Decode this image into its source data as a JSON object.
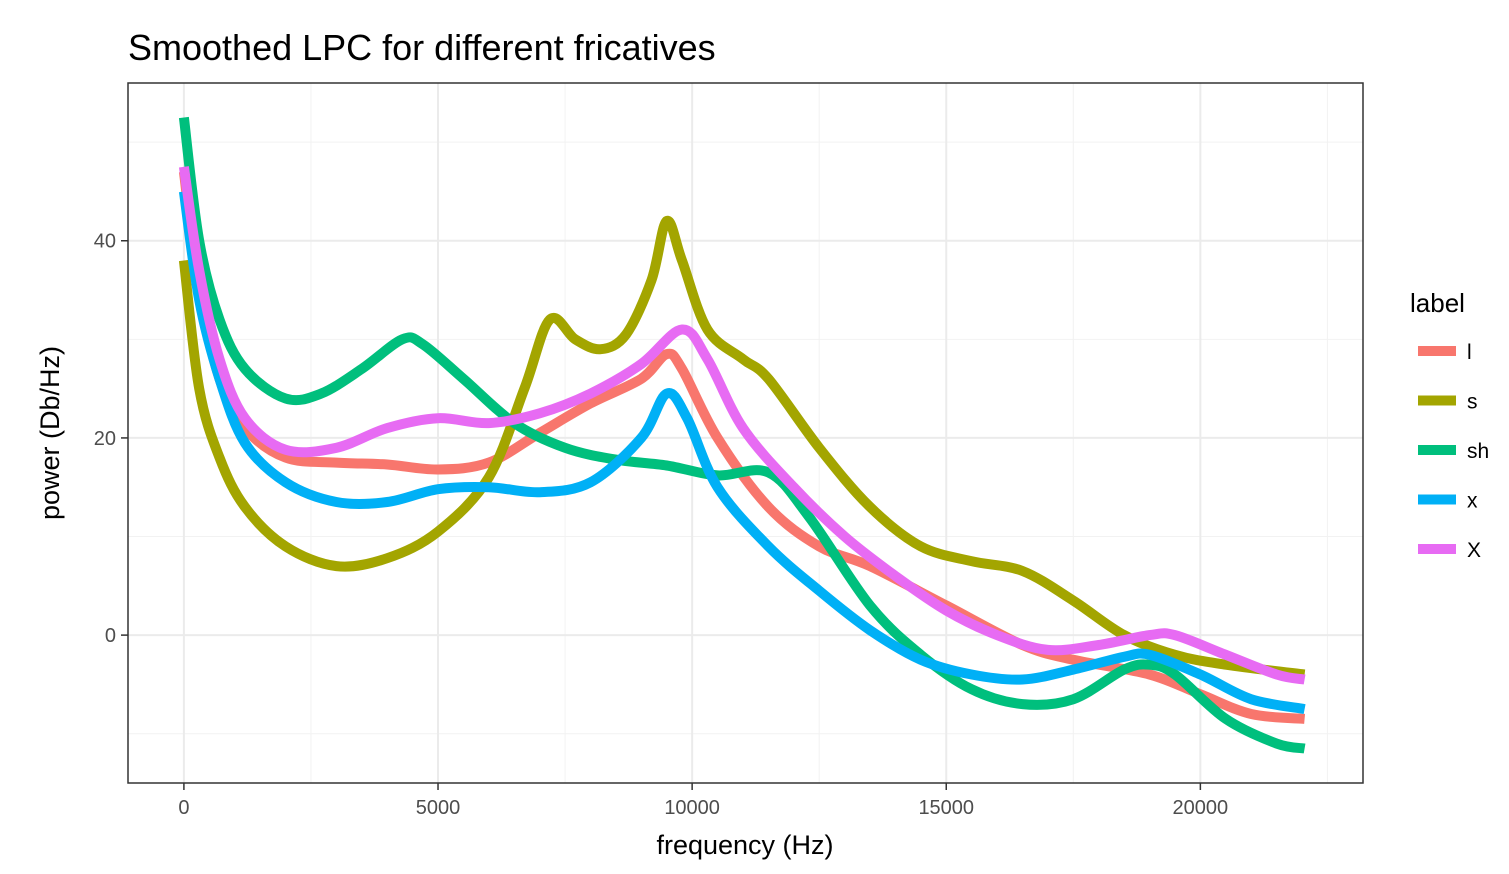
{
  "chart_data": {
    "type": "line",
    "title": "Smoothed LPC for different fricatives",
    "xlabel": "frequency (Hz)",
    "ylabel": "power (Db/Hz)",
    "xlim": [
      -1100,
      23200
    ],
    "ylim": [
      -15,
      56
    ],
    "x_ticks": [
      0,
      5000,
      10000,
      15000,
      20000
    ],
    "y_ticks": [
      0,
      20,
      40
    ],
    "grid": true,
    "legend": {
      "title": "label",
      "position": "right"
    },
    "series": [
      {
        "name": "l",
        "color": "#F8766D",
        "points": [
          [
            0,
            47
          ],
          [
            300,
            35
          ],
          [
            700,
            26
          ],
          [
            1200,
            21
          ],
          [
            2000,
            18
          ],
          [
            3000,
            17.5
          ],
          [
            4000,
            17.3
          ],
          [
            5000,
            16.8
          ],
          [
            6000,
            17.5
          ],
          [
            7000,
            20.5
          ],
          [
            8000,
            23.5
          ],
          [
            9000,
            26
          ],
          [
            9500,
            28.5
          ],
          [
            9800,
            27
          ],
          [
            10500,
            20
          ],
          [
            11500,
            13
          ],
          [
            12500,
            9
          ],
          [
            13500,
            7
          ],
          [
            15000,
            3
          ],
          [
            16500,
            -1
          ],
          [
            17500,
            -2.5
          ],
          [
            19000,
            -4
          ],
          [
            20000,
            -6
          ],
          [
            21000,
            -8
          ],
          [
            22050,
            -8.5
          ]
        ]
      },
      {
        "name": "s",
        "color": "#A3A500",
        "points": [
          [
            0,
            38
          ],
          [
            300,
            25
          ],
          [
            700,
            18
          ],
          [
            1200,
            13
          ],
          [
            2000,
            9
          ],
          [
            3000,
            7
          ],
          [
            4000,
            7.8
          ],
          [
            5000,
            10.5
          ],
          [
            6000,
            16
          ],
          [
            6700,
            25
          ],
          [
            7200,
            32
          ],
          [
            7700,
            30
          ],
          [
            8200,
            29
          ],
          [
            8700,
            30.5
          ],
          [
            9200,
            36
          ],
          [
            9500,
            42
          ],
          [
            9800,
            38
          ],
          [
            10300,
            31
          ],
          [
            11000,
            28
          ],
          [
            11500,
            26
          ],
          [
            12500,
            19
          ],
          [
            13500,
            13
          ],
          [
            14500,
            9
          ],
          [
            15500,
            7.5
          ],
          [
            16500,
            6.5
          ],
          [
            17500,
            3.5
          ],
          [
            18500,
            0
          ],
          [
            19500,
            -2
          ],
          [
            20500,
            -3
          ],
          [
            22050,
            -4
          ]
        ]
      },
      {
        "name": "sh",
        "color": "#00BF7D",
        "points": [
          [
            0,
            52.5
          ],
          [
            300,
            40
          ],
          [
            700,
            32
          ],
          [
            1200,
            27
          ],
          [
            2000,
            24
          ],
          [
            2700,
            24.5
          ],
          [
            3500,
            27
          ],
          [
            4300,
            30
          ],
          [
            4700,
            29.5
          ],
          [
            5500,
            26
          ],
          [
            6500,
            21.5
          ],
          [
            7500,
            19
          ],
          [
            8500,
            17.8
          ],
          [
            9500,
            17.2
          ],
          [
            10500,
            16.2
          ],
          [
            11500,
            16.5
          ],
          [
            12300,
            12
          ],
          [
            13500,
            3
          ],
          [
            14500,
            -2
          ],
          [
            15500,
            -5.5
          ],
          [
            16500,
            -7
          ],
          [
            17500,
            -6.5
          ],
          [
            18500,
            -3.5
          ],
          [
            19000,
            -3
          ],
          [
            19500,
            -4
          ],
          [
            20500,
            -8.5
          ],
          [
            21500,
            -11
          ],
          [
            22050,
            -11.5
          ]
        ]
      },
      {
        "name": "x",
        "color": "#00B0F6",
        "points": [
          [
            0,
            45
          ],
          [
            300,
            34
          ],
          [
            700,
            26
          ],
          [
            1200,
            19.5
          ],
          [
            2000,
            15.5
          ],
          [
            3000,
            13.5
          ],
          [
            4000,
            13.5
          ],
          [
            5000,
            14.8
          ],
          [
            6000,
            15
          ],
          [
            7000,
            14.5
          ],
          [
            8000,
            15.5
          ],
          [
            9000,
            20
          ],
          [
            9500,
            24.5
          ],
          [
            9900,
            22
          ],
          [
            10500,
            15
          ],
          [
            11500,
            9
          ],
          [
            12500,
            4.5
          ],
          [
            13500,
            0.5
          ],
          [
            14500,
            -2.5
          ],
          [
            15500,
            -4
          ],
          [
            16500,
            -4.5
          ],
          [
            17500,
            -3.5
          ],
          [
            18500,
            -2.2
          ],
          [
            19000,
            -2
          ],
          [
            20000,
            -4
          ],
          [
            21000,
            -6.5
          ],
          [
            22050,
            -7.5
          ]
        ]
      },
      {
        "name": "X",
        "color": "#E76BF3",
        "points": [
          [
            0,
            47.5
          ],
          [
            300,
            37
          ],
          [
            700,
            28
          ],
          [
            1200,
            22
          ],
          [
            2000,
            18.8
          ],
          [
            3000,
            19
          ],
          [
            4000,
            21
          ],
          [
            5000,
            22
          ],
          [
            6000,
            21.5
          ],
          [
            7000,
            22.5
          ],
          [
            8000,
            24.5
          ],
          [
            9000,
            27.5
          ],
          [
            9800,
            31
          ],
          [
            10300,
            28
          ],
          [
            11000,
            21
          ],
          [
            12000,
            15
          ],
          [
            13000,
            10
          ],
          [
            14000,
            6
          ],
          [
            15000,
            2.5
          ],
          [
            16000,
            0
          ],
          [
            17000,
            -1.5
          ],
          [
            18000,
            -1
          ],
          [
            19000,
            0
          ],
          [
            19500,
            0
          ],
          [
            20500,
            -2
          ],
          [
            21500,
            -4
          ],
          [
            22050,
            -4.5
          ]
        ]
      }
    ]
  }
}
